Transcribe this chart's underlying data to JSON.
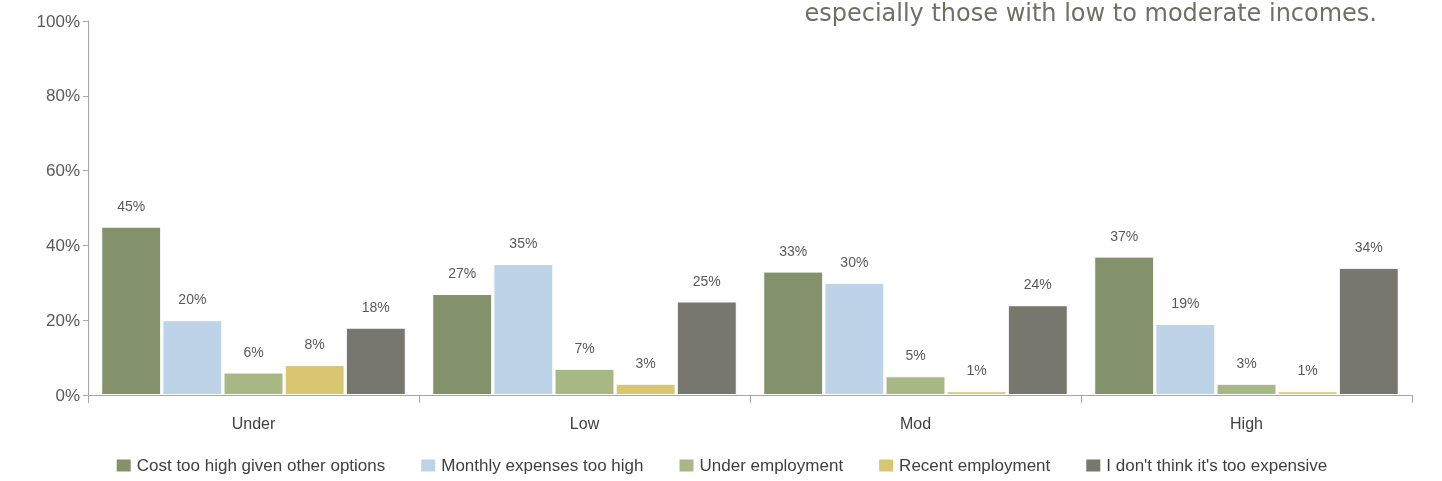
{
  "chart_data": {
    "type": "bar",
    "subtitle": "especially those with low to moderate incomes.",
    "categories": [
      "Under",
      "Low",
      "Mod",
      "High"
    ],
    "series": [
      {
        "name": "Cost too high given other options",
        "color": "#84926b",
        "values": [
          45,
          27,
          33,
          37
        ],
        "value_labels": [
          "45%",
          "27%",
          "33%",
          "37%"
        ]
      },
      {
        "name": "Monthly expenses too high",
        "color": "#bcd3e8",
        "values": [
          20,
          35,
          30,
          19
        ],
        "value_labels": [
          "20%",
          "35%",
          "30%",
          "19%"
        ]
      },
      {
        "name": "Under employment",
        "color": "#a7b885",
        "values": [
          6,
          7,
          5,
          3
        ],
        "value_labels": [
          "6%",
          "7%",
          "5%",
          "3%"
        ]
      },
      {
        "name": "Recent employment",
        "color": "#d9c671",
        "values": [
          8,
          3,
          1,
          1
        ],
        "value_labels": [
          "8%",
          "3%",
          "1%",
          "1%"
        ]
      },
      {
        "name": "I don't think it's too expensive",
        "color": "#77776d",
        "values": [
          18,
          25,
          24,
          34
        ],
        "value_labels": [
          "18%",
          "25%",
          "24%",
          "34%"
        ]
      }
    ],
    "ylim": [
      0,
      100
    ],
    "yticks": [
      {
        "value": 0,
        "label": "0%"
      },
      {
        "value": 20,
        "label": "20%"
      },
      {
        "value": 40,
        "label": "40%"
      },
      {
        "value": 60,
        "label": "60%"
      },
      {
        "value": 80,
        "label": "80%"
      },
      {
        "value": 100,
        "label": "100%"
      }
    ],
    "grid": false,
    "legend": "bottom"
  }
}
